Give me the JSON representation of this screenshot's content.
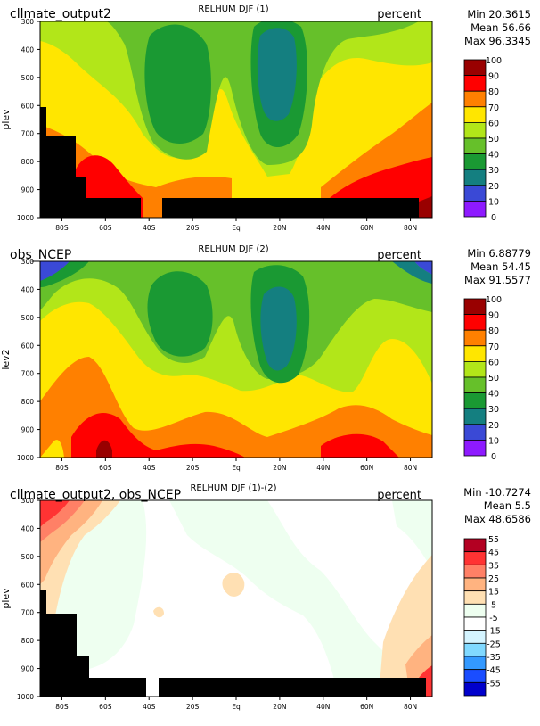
{
  "panels": [
    {
      "left_label": "cllmate_output2",
      "center_title": "RELHUM DJF (1)",
      "units": "percent",
      "ylabel": "plev",
      "stats": {
        "min": "Min 20.3615",
        "mean": "Mean 56.66",
        "max": "Max 96.3345"
      },
      "colorbar": {
        "labels": [
          "100",
          "90",
          "80",
          "70",
          "60",
          "50",
          "40",
          "30",
          "20",
          "10",
          "0"
        ],
        "colors": [
          "#990000",
          "#ff0000",
          "#ff8000",
          "#ffe600",
          "#b2e619",
          "#66c02a",
          "#1a9933",
          "#147f80",
          "#3a49d6",
          "#8e1aff"
        ]
      }
    },
    {
      "left_label": "obs_NCEP",
      "center_title": "RELHUM DJF (2)",
      "units": "percent",
      "ylabel": "lev2",
      "stats": {
        "min": "Min 6.88779",
        "mean": "Mean 54.45",
        "max": "Max 91.5577"
      },
      "colorbar": {
        "labels": [
          "100",
          "90",
          "80",
          "70",
          "60",
          "50",
          "40",
          "30",
          "20",
          "10",
          "0"
        ],
        "colors": [
          "#990000",
          "#ff0000",
          "#ff8000",
          "#ffe600",
          "#b2e619",
          "#66c02a",
          "#1a9933",
          "#147f80",
          "#3a49d6",
          "#8e1aff"
        ]
      }
    },
    {
      "left_label": "cllmate_output2, obs_NCEP",
      "center_title": "RELHUM DJF (1)-(2)",
      "units": "percent",
      "ylabel": "plev",
      "stats": {
        "min": "Min -10.7274",
        "mean": "Mean 5.5",
        "max": "Max 48.6586"
      },
      "colorbar": {
        "labels": [
          "55",
          "45",
          "35",
          "25",
          "15",
          "5",
          "-5",
          "-15",
          "-25",
          "-35",
          "-45",
          "-55"
        ],
        "colors": [
          "#b30022",
          "#ff3333",
          "#ff8066",
          "#ffb380",
          "#ffe0b3",
          "#eefff0",
          "#ffffff",
          "#d4f4ff",
          "#80d9ff",
          "#3399ff",
          "#1a4dff",
          "#0000cc"
        ]
      }
    }
  ],
  "chart_data": [
    {
      "type": "heatmap",
      "title": "RELHUM DJF (1)",
      "ylabel": "plev",
      "x_ticks": [
        "80S",
        "60S",
        "40S",
        "20S",
        "Eq",
        "20N",
        "40N",
        "60N",
        "80N"
      ],
      "y_ticks": [
        "300",
        "400",
        "500",
        "600",
        "700",
        "800",
        "900",
        "1000"
      ],
      "ylim": [
        300,
        1000
      ],
      "levels": [
        0,
        10,
        20,
        30,
        40,
        50,
        60,
        70,
        80,
        90,
        100
      ],
      "stats": {
        "min": 20.3615,
        "mean": 56.66,
        "max": 96.3345
      }
    },
    {
      "type": "heatmap",
      "title": "RELHUM DJF (2)",
      "ylabel": "lev2",
      "x_ticks": [
        "80S",
        "60S",
        "40S",
        "20S",
        "Eq",
        "20N",
        "40N",
        "60N",
        "80N"
      ],
      "y_ticks": [
        "300",
        "400",
        "500",
        "600",
        "700",
        "800",
        "900",
        "1000"
      ],
      "ylim": [
        300,
        1000
      ],
      "levels": [
        0,
        10,
        20,
        30,
        40,
        50,
        60,
        70,
        80,
        90,
        100
      ],
      "stats": {
        "min": 6.88779,
        "mean": 54.45,
        "max": 91.5577
      }
    },
    {
      "type": "heatmap",
      "title": "RELHUM DJF (1)-(2)",
      "ylabel": "plev",
      "x_ticks": [
        "80S",
        "60S",
        "40S",
        "20S",
        "Eq",
        "20N",
        "40N",
        "60N",
        "80N"
      ],
      "y_ticks": [
        "300",
        "400",
        "500",
        "600",
        "700",
        "800",
        "900",
        "1000"
      ],
      "ylim": [
        300,
        1000
      ],
      "levels": [
        -55,
        -45,
        -35,
        -25,
        -15,
        -5,
        5,
        15,
        25,
        35,
        45,
        55
      ],
      "stats": {
        "min": -10.7274,
        "mean": 5.5,
        "max": 48.6586
      }
    }
  ]
}
